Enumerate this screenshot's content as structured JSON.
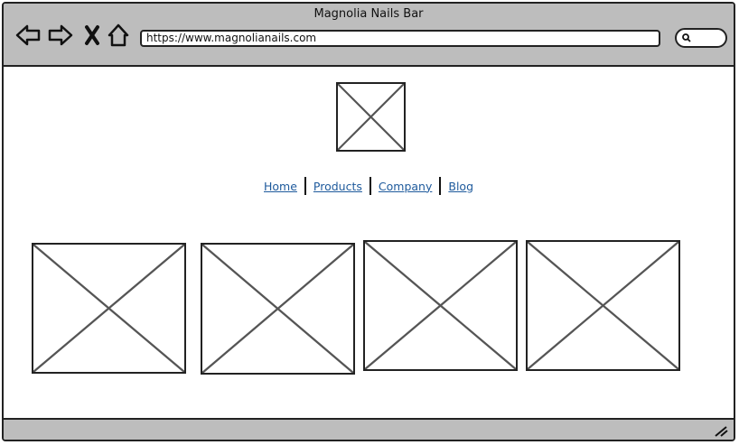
{
  "window": {
    "title": "Magnolia Nails Bar"
  },
  "toolbar": {
    "url": "https://www.magnolianails.com",
    "icons": [
      "back-icon",
      "forward-icon",
      "close-icon",
      "home-icon",
      "search-icon"
    ]
  },
  "page": {
    "logo_icon": "image-placeholder",
    "nav": [
      {
        "label": "Home"
      },
      {
        "label": "Products"
      },
      {
        "label": "Company"
      },
      {
        "label": "Blog"
      }
    ],
    "images": [
      "image-placeholder",
      "image-placeholder",
      "image-placeholder",
      "image-placeholder"
    ]
  },
  "colors": {
    "chrome": "#bdbdbd",
    "link": "#1e5a9c",
    "border": "#222222"
  }
}
